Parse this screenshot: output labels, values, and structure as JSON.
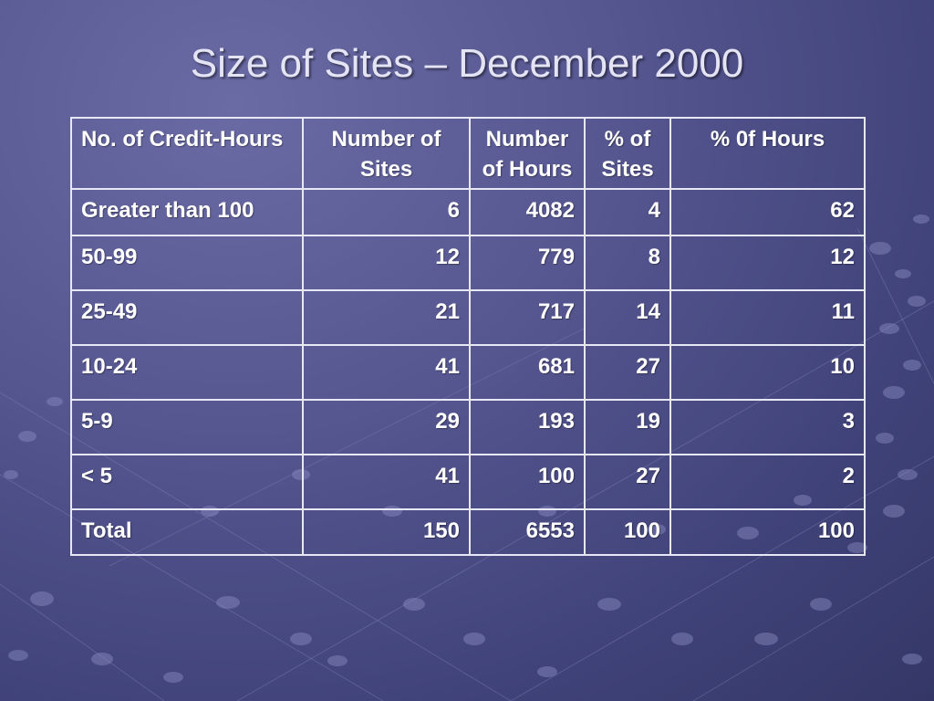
{
  "slide": {
    "title": "Size of Sites – December 2000",
    "background_color": "#4a4c86"
  },
  "table": {
    "headers": [
      "No. of Credit-Hours",
      "Number of Sites",
      "Number of Hours",
      "% of Sites",
      "% 0f Hours"
    ],
    "rows": [
      [
        "Greater than 100",
        "6",
        "4082",
        "4",
        "62"
      ],
      [
        "50-99",
        "12",
        "779",
        "8",
        "12"
      ],
      [
        "25-49",
        "21",
        "717",
        "14",
        "11"
      ],
      [
        "10-24",
        "41",
        "681",
        "27",
        "10"
      ],
      [
        "5-9",
        "29",
        "193",
        "19",
        "3"
      ],
      [
        "< 5",
        "41",
        "100",
        "27",
        "2"
      ],
      [
        "Total",
        "150",
        "6553",
        "100",
        "100"
      ]
    ]
  }
}
